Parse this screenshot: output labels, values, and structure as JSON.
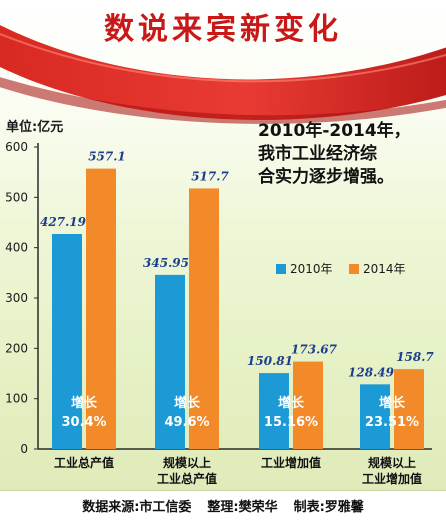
{
  "title": "数说来宾新变化",
  "unit_label": "单位:亿元",
  "headline": [
    "2010年-2014年，",
    "我市工业经济综",
    "合实力逐步增强。"
  ],
  "footer": {
    "source": "数据来源:市工信委",
    "editor": "整理:樊荣华",
    "designer": "制表:罗雅馨"
  },
  "colors": {
    "series_2010": "#1b9ad6",
    "series_2014": "#f28a2a",
    "title_red": "#c81818",
    "value_label": "#1b3e8c"
  },
  "chart_data": {
    "type": "bar",
    "title": "",
    "xlabel": "",
    "ylabel": "单位:亿元",
    "ylim": [
      0,
      600
    ],
    "yticks": [
      0,
      100,
      200,
      300,
      400,
      500,
      600
    ],
    "grid": false,
    "legend_position": "right-middle",
    "categories": [
      [
        "工业总产值"
      ],
      [
        "规模以上",
        "工业总产值"
      ],
      [
        "工业增加值"
      ],
      [
        "规模以上",
        "工业增加值"
      ]
    ],
    "series": [
      {
        "name": "2010年",
        "values": [
          427.19,
          345.95,
          150.81,
          128.49
        ],
        "labels": [
          "427.19",
          "345.95",
          "150.81",
          "128.49"
        ]
      },
      {
        "name": "2014年",
        "values": [
          557.1,
          517.7,
          173.67,
          158.7
        ],
        "labels": [
          "557.1",
          "517.7",
          "173.67",
          "158.7"
        ]
      }
    ],
    "growth": [
      {
        "label": "增长",
        "value": "30.4%"
      },
      {
        "label": "增长",
        "value": "49.6%"
      },
      {
        "label": "增长",
        "value": "15.16%"
      },
      {
        "label": "增长",
        "value": "23.51%"
      }
    ]
  }
}
